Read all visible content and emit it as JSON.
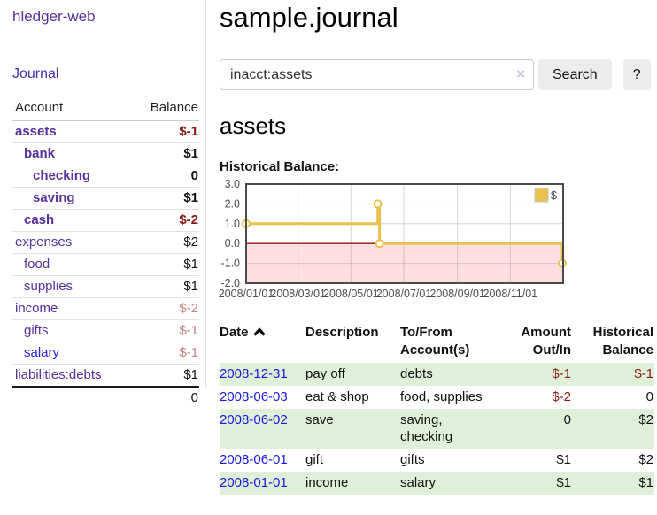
{
  "brand": "hledger-web",
  "nav": {
    "journal": "Journal"
  },
  "sidebar": {
    "col_account": "Account",
    "col_balance": "Balance",
    "rows": [
      {
        "name": "assets",
        "balance": "$-1",
        "name_class": "lvl0 bold acct",
        "val_class": "bold neg-strong"
      },
      {
        "name": "bank",
        "balance": "$1",
        "name_class": "lvl1 bold acct",
        "val_class": "bold"
      },
      {
        "name": "checking",
        "balance": "0",
        "name_class": "lvl2 bold acct",
        "val_class": "bold"
      },
      {
        "name": "saving",
        "balance": "$1",
        "name_class": "lvl2 bold acct",
        "val_class": "bold"
      },
      {
        "name": "cash",
        "balance": "$-2",
        "name_class": "lvl1 bold acct",
        "val_class": "bold neg-strong"
      },
      {
        "name": "expenses",
        "balance": "$2",
        "name_class": "lvl0 acct",
        "val_class": ""
      },
      {
        "name": "food",
        "balance": "$1",
        "name_class": "lvl1 acct",
        "val_class": ""
      },
      {
        "name": "supplies",
        "balance": "$1",
        "name_class": "lvl1 acct",
        "val_class": ""
      },
      {
        "name": "income",
        "balance": "$-2",
        "name_class": "lvl0 acct",
        "val_class": "neg-soft"
      },
      {
        "name": "gifts",
        "balance": "$-1",
        "name_class": "lvl1 acct",
        "val_class": "neg-soft"
      },
      {
        "name": "salary",
        "balance": "$-1",
        "name_class": "lvl1 acct-new",
        "val_class": "neg-soft"
      },
      {
        "name": "liabilities:debts",
        "balance": "$1",
        "name_class": "lvl0 acct",
        "val_class": ""
      }
    ],
    "total": "0"
  },
  "header": {
    "title": "sample.journal"
  },
  "search": {
    "value": "inacct:assets",
    "clear_icon": "×",
    "button": "Search",
    "help": "?"
  },
  "account_page": {
    "heading": "assets",
    "chart_title": "Historical Balance:"
  },
  "chart_data": {
    "type": "line",
    "title": "Historical Balance:",
    "step": true,
    "series": [
      {
        "name": "$",
        "color": "#e8c24d",
        "points": [
          [
            "2008-01-01",
            1
          ],
          [
            "2008-06-01",
            2
          ],
          [
            "2008-06-03",
            0
          ],
          [
            "2008-12-31",
            -1
          ]
        ]
      }
    ],
    "xlim": [
      "2008-01-01",
      "2009-01-01"
    ],
    "ylim": [
      -2,
      3
    ],
    "yticks": [
      "3.0",
      "2.0",
      "1.0",
      "0.0",
      "-1.0",
      "-2.0"
    ],
    "xticks": [
      "2008-01-01",
      "2008-03-01",
      "2008-05-01",
      "2008-07-01",
      "2008-09-01",
      "2008-11-01"
    ],
    "xtick_labels": [
      "2008/01/01",
      "2008/03/01",
      "2008/05/01",
      "2008/07/01",
      "2008/09/01",
      "2008/11/01"
    ],
    "legend": {
      "label": "$",
      "position": "top-right"
    },
    "grid": true,
    "negative_region_color": "#ffdfdf",
    "zero_line_color": "#9a1414",
    "border_color": "#4a4a4a"
  },
  "register": {
    "headers": {
      "date": "Date",
      "description": "Description",
      "accounts": "To/From Account(s)",
      "amount": "Amount Out/In",
      "balance": "Historical Balance"
    },
    "rows": [
      {
        "date": "2008-12-31",
        "description": "pay off",
        "accounts": "debts",
        "amount": "$-1",
        "balance": "$-1",
        "row_class": "alt",
        "amount_class": "neg-strong",
        "balance_class": "neg-strong"
      },
      {
        "date": "2008-06-03",
        "description": "eat & shop",
        "accounts": "food, supplies",
        "amount": "$-2",
        "balance": "0",
        "row_class": "",
        "amount_class": "neg-strong",
        "balance_class": ""
      },
      {
        "date": "2008-06-02",
        "description": "save",
        "accounts": "saving, checking",
        "amount": "0",
        "balance": "$2",
        "row_class": "alt",
        "amount_class": "",
        "balance_class": ""
      },
      {
        "date": "2008-06-01",
        "description": "gift",
        "accounts": "gifts",
        "amount": "$1",
        "balance": "$2",
        "row_class": "",
        "amount_class": "",
        "balance_class": ""
      },
      {
        "date": "2008-01-01",
        "description": "income",
        "accounts": "salary",
        "amount": "$1",
        "balance": "$1",
        "row_class": "alt",
        "amount_class": "",
        "balance_class": ""
      }
    ]
  },
  "colors": {
    "accent_purple": "#57309c",
    "link_blue": "#1a17e0",
    "negative_strong": "#8b1712",
    "negative_soft": "#c38585",
    "row_green": "#dff0d8",
    "chart_gold": "#e8c24d",
    "chart_negative_bg": "#ffdfdf"
  }
}
